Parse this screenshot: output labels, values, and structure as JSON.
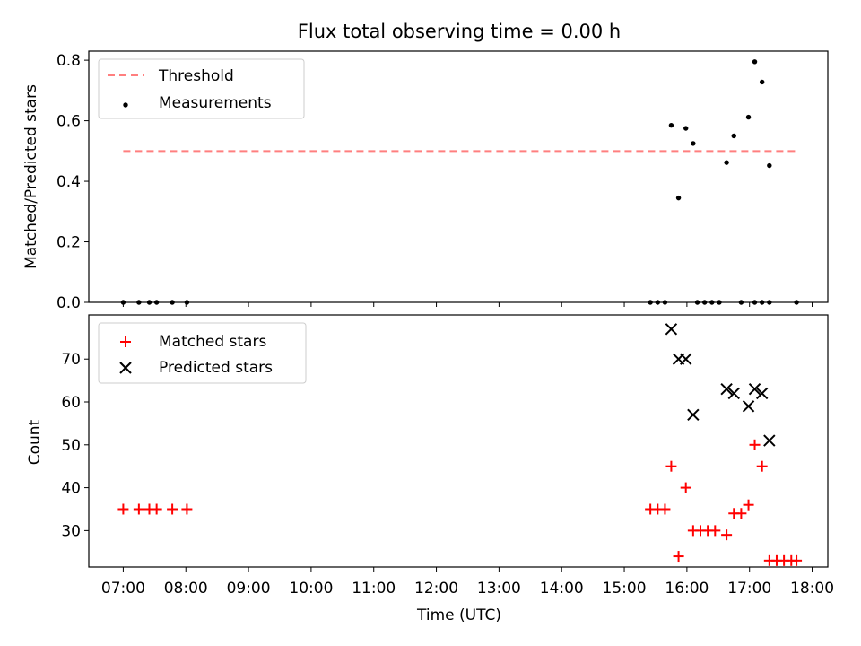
{
  "title": "Flux total observing time = 0.00 h",
  "xlabel": "Time (UTC)",
  "x_ticks": [
    "07:00",
    "08:00",
    "09:00",
    "10:00",
    "11:00",
    "12:00",
    "13:00",
    "14:00",
    "15:00",
    "16:00",
    "17:00",
    "18:00"
  ],
  "colors": {
    "threshold": "#ff7f7f",
    "measurement": "#000000",
    "matched": "#ff0000",
    "predicted": "#000000"
  },
  "chart_data": [
    {
      "type": "scatter",
      "ylabel": "Matched/Predicted stars",
      "xlim": [
        "06:27",
        "18:15"
      ],
      "ylim": [
        0,
        0.83
      ],
      "y_ticks": [
        "0.0",
        "0.2",
        "0.4",
        "0.6",
        "0.8"
      ],
      "legend_position": "top-left",
      "threshold": {
        "name": "Threshold",
        "value": 0.5,
        "x_start": "07:00",
        "x_end": "17:45"
      },
      "series": [
        {
          "name": "Measurements",
          "points": [
            [
              "07:00",
              0
            ],
            [
              "07:15",
              0
            ],
            [
              "07:25",
              0
            ],
            [
              "07:32",
              0
            ],
            [
              "07:47",
              0
            ],
            [
              "08:01",
              0
            ],
            [
              "15:25",
              0
            ],
            [
              "15:32",
              0
            ],
            [
              "15:39",
              0
            ],
            [
              "15:45",
              0.585
            ],
            [
              "15:52",
              0.345
            ],
            [
              "15:59",
              0.575
            ],
            [
              "16:06",
              0.525
            ],
            [
              "16:10",
              0
            ],
            [
              "16:17",
              0
            ],
            [
              "16:24",
              0
            ],
            [
              "16:31",
              0
            ],
            [
              "16:38",
              0.462
            ],
            [
              "16:45",
              0.55
            ],
            [
              "16:52",
              0
            ],
            [
              "16:59",
              0.612
            ],
            [
              "17:05",
              0.795
            ],
            [
              "17:12",
              0.728
            ],
            [
              "17:19",
              0.452
            ],
            [
              "17:05",
              0
            ],
            [
              "17:12",
              0
            ],
            [
              "17:19",
              0
            ],
            [
              "17:45",
              0
            ]
          ]
        }
      ]
    },
    {
      "type": "scatter",
      "ylabel": "Count",
      "xlim": [
        "06:27",
        "18:15"
      ],
      "ylim": [
        21.5,
        80.3
      ],
      "y_ticks": [
        "30",
        "40",
        "50",
        "60",
        "70"
      ],
      "legend_position": "top-left",
      "series": [
        {
          "name": "Matched stars",
          "marker": "+",
          "points": [
            [
              "07:00",
              35
            ],
            [
              "07:15",
              35
            ],
            [
              "07:25",
              35
            ],
            [
              "07:32",
              35
            ],
            [
              "07:47",
              35
            ],
            [
              "08:01",
              35
            ],
            [
              "15:25",
              35
            ],
            [
              "15:32",
              35
            ],
            [
              "15:39",
              35
            ],
            [
              "15:45",
              45
            ],
            [
              "15:52",
              24
            ],
            [
              "15:59",
              40
            ],
            [
              "16:06",
              30
            ],
            [
              "16:13",
              30
            ],
            [
              "16:20",
              30
            ],
            [
              "16:27",
              30
            ],
            [
              "16:38",
              29
            ],
            [
              "16:45",
              34
            ],
            [
              "16:52",
              34
            ],
            [
              "16:59",
              36
            ],
            [
              "17:05",
              50
            ],
            [
              "17:12",
              45
            ],
            [
              "17:19",
              23
            ],
            [
              "17:26",
              23
            ],
            [
              "17:33",
              23
            ],
            [
              "17:40",
              23
            ],
            [
              "17:45",
              23
            ]
          ]
        },
        {
          "name": "Predicted stars",
          "marker": "x",
          "points": [
            [
              "15:45",
              77
            ],
            [
              "15:52",
              70
            ],
            [
              "15:59",
              70
            ],
            [
              "16:06",
              57
            ],
            [
              "16:38",
              63
            ],
            [
              "16:45",
              62
            ],
            [
              "16:59",
              59
            ],
            [
              "17:05",
              63
            ],
            [
              "17:12",
              62
            ],
            [
              "17:19",
              51
            ]
          ]
        }
      ]
    }
  ]
}
